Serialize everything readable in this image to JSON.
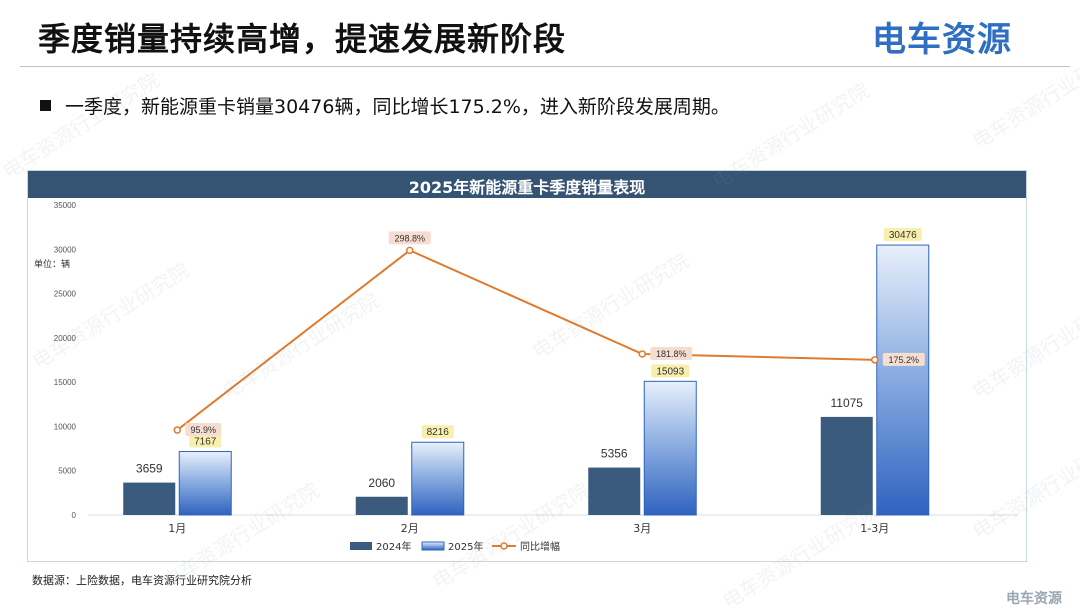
{
  "slide": {
    "title": "季度销量持续高增，提速发展新阶段",
    "logo_text": "电车资源",
    "bullet": "一季度，新能源重卡销量30476辆，同比增长175.2%，进入新阶段发展周期。",
    "source": "数据源：上险数据，电车资源行业研究院分析",
    "footer_mark": "电车资源",
    "watermark": "电车资源行业研究院"
  },
  "chart_data": {
    "type": "bar",
    "title": "2025年新能源重卡季度销量表现",
    "unit_label": "单位：辆",
    "categories": [
      "1月",
      "2月",
      "3月",
      "1-3月"
    ],
    "series": [
      {
        "name": "2024年",
        "type": "bar",
        "values": [
          3659,
          2060,
          5356,
          11075
        ],
        "color": "#3a5a7e"
      },
      {
        "name": "2025年",
        "type": "bar",
        "values": [
          7167,
          8216,
          15093,
          30476
        ],
        "color": "#2f63c0"
      },
      {
        "name": "同比增幅",
        "type": "line",
        "values": [
          95.9,
          298.8,
          181.8,
          175.2
        ],
        "labels": [
          "95.9%",
          "298.8%",
          "181.8%",
          "175.2%"
        ],
        "color": "#e07a2e"
      }
    ],
    "y_ticks": [
      "0",
      "5000",
      "10000",
      "15000",
      "20000",
      "25000",
      "30000",
      "35000"
    ],
    "ylim": [
      0,
      35000
    ],
    "line_ylim": [
      0,
      350
    ],
    "legend_position": "bottom",
    "grid": false
  }
}
